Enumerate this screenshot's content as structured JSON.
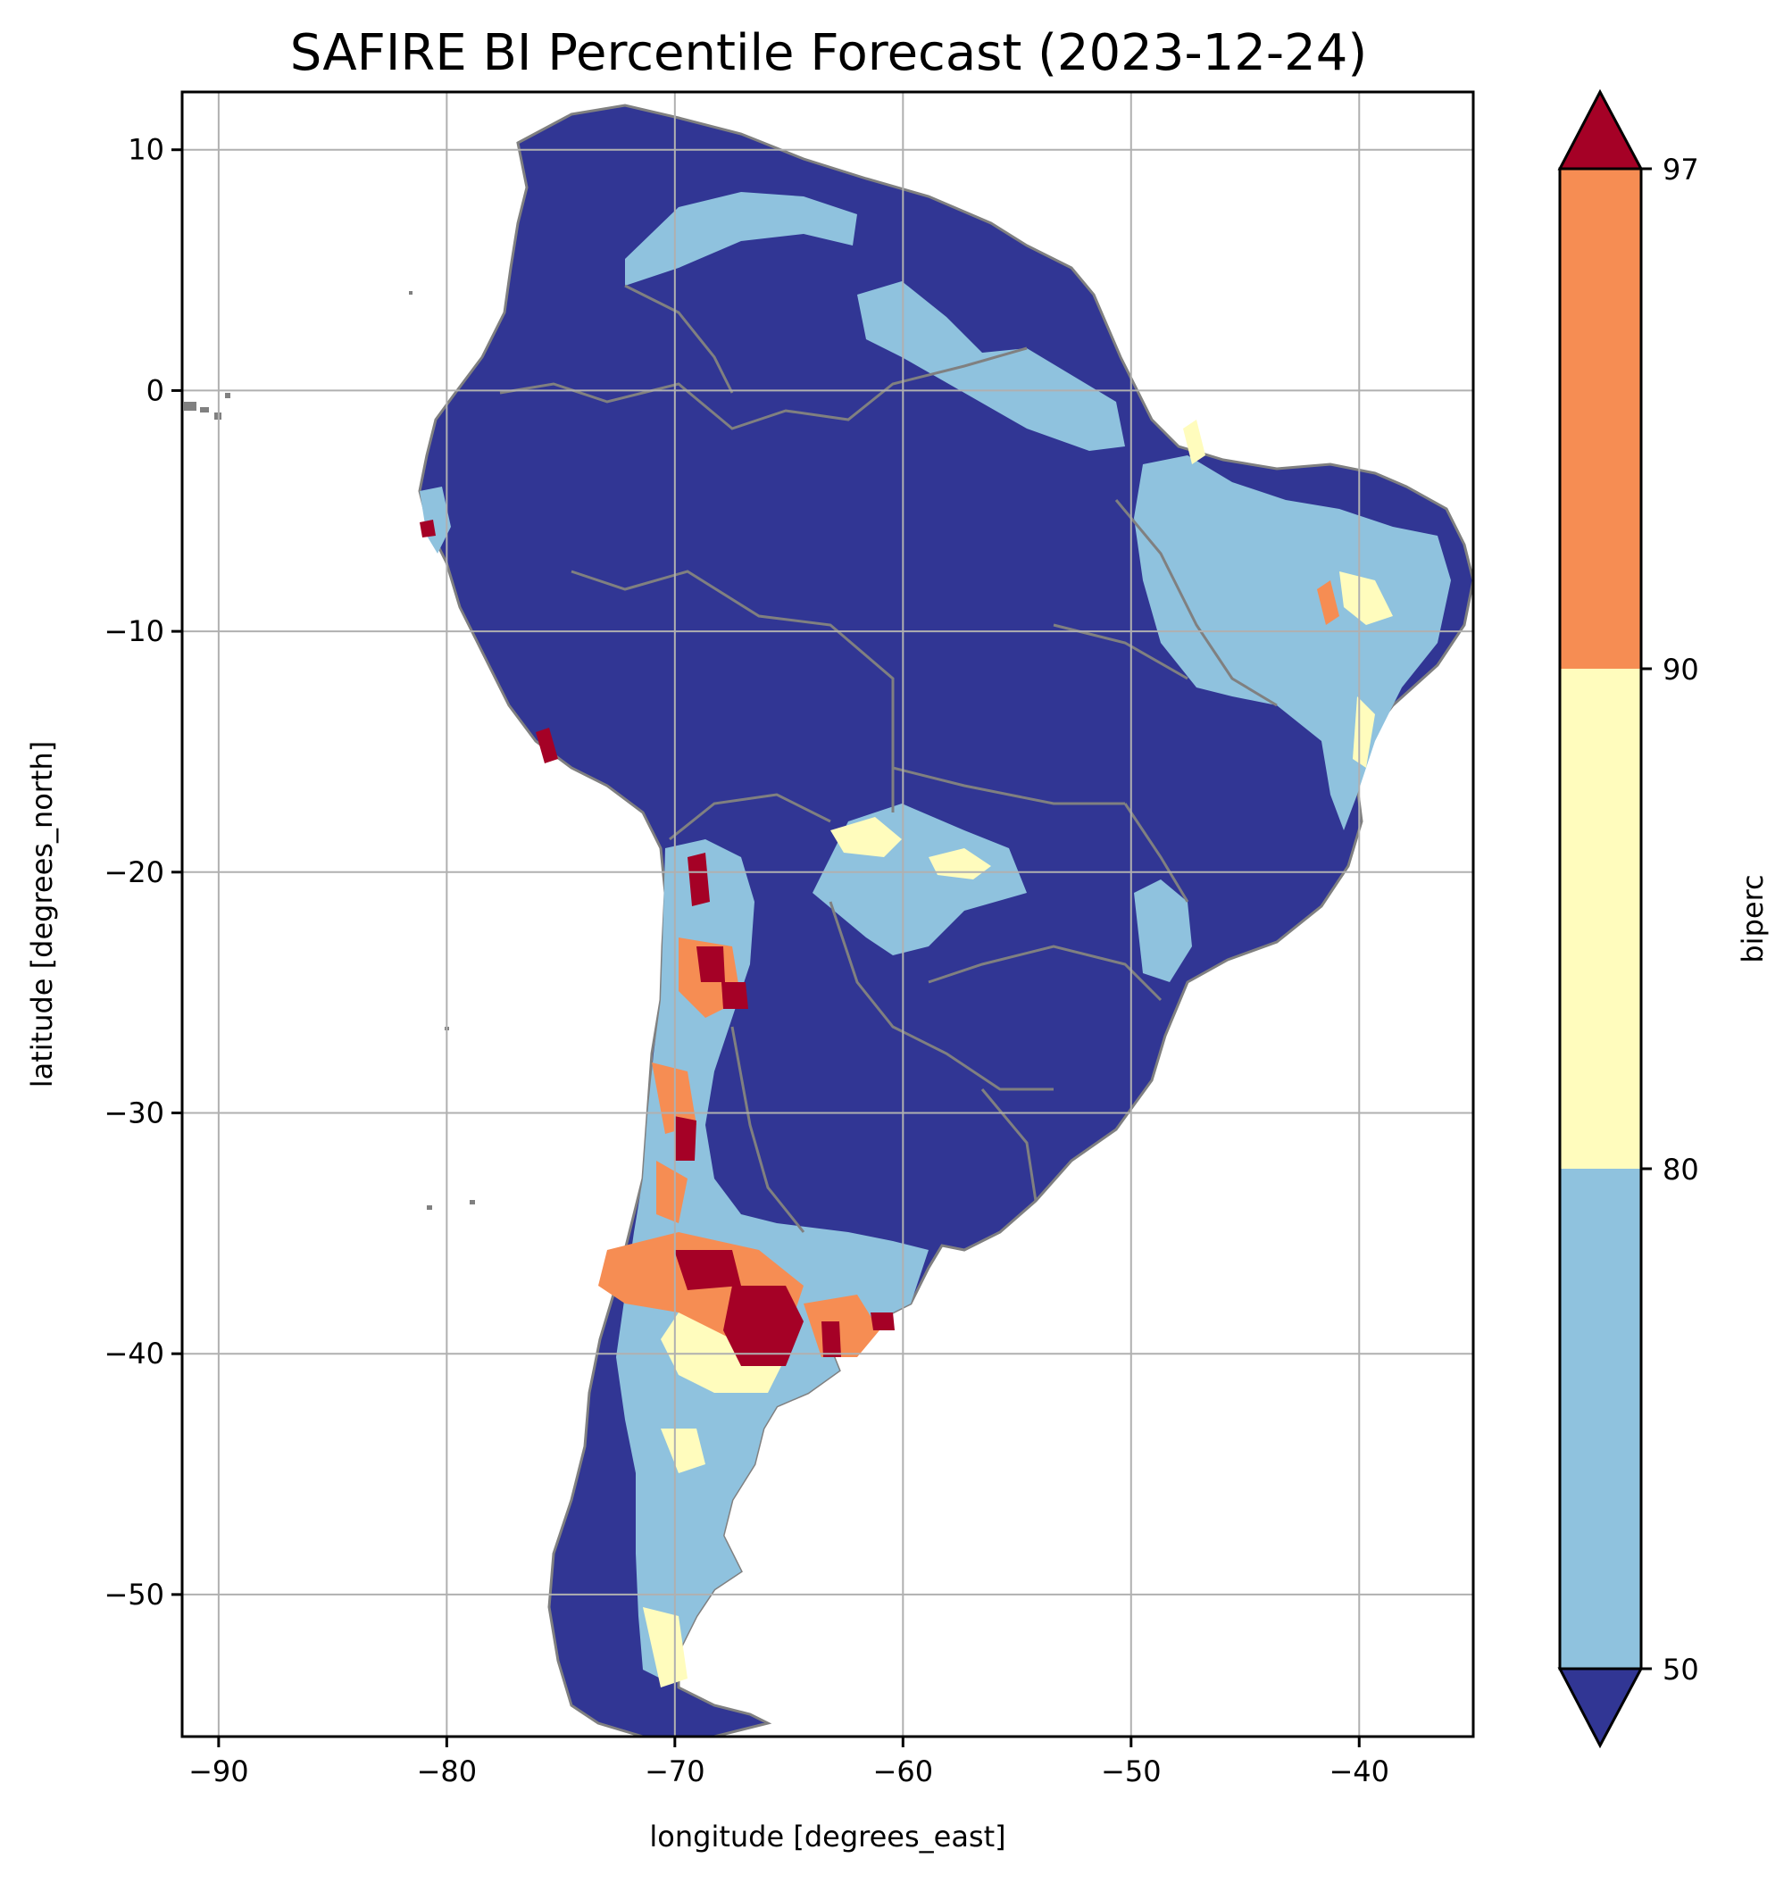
{
  "title": "SAFIRE BI Percentile Forecast (2023-12-24)",
  "map": {
    "xlabel": "longitude [degrees_east]",
    "ylabel": "latitude [degrees_north]",
    "xlim": [
      -91.6,
      -35.0
    ],
    "ylim": [
      -55.9,
      12.4
    ],
    "x_ticks": [
      -90,
      -80,
      -70,
      -60,
      -50,
      -40
    ],
    "y_ticks": [
      10,
      0,
      -10,
      -20,
      -30,
      -40,
      -50
    ],
    "grid": true,
    "border_color": "#808080",
    "region": "South America",
    "variable": "biperc"
  },
  "colorbar": {
    "label": "biperc",
    "ticks": [
      "97",
      "90",
      "80",
      "50"
    ],
    "extend": "both",
    "bands": [
      {
        "from": 90,
        "to": 97,
        "color": "#f68d53"
      },
      {
        "from": 80,
        "to": 90,
        "color": "#fffcbd"
      },
      {
        "from": 50,
        "to": 80,
        "color": "#8fc2de"
      }
    ],
    "over_color": "#a50126",
    "under_color": "#313694"
  }
}
